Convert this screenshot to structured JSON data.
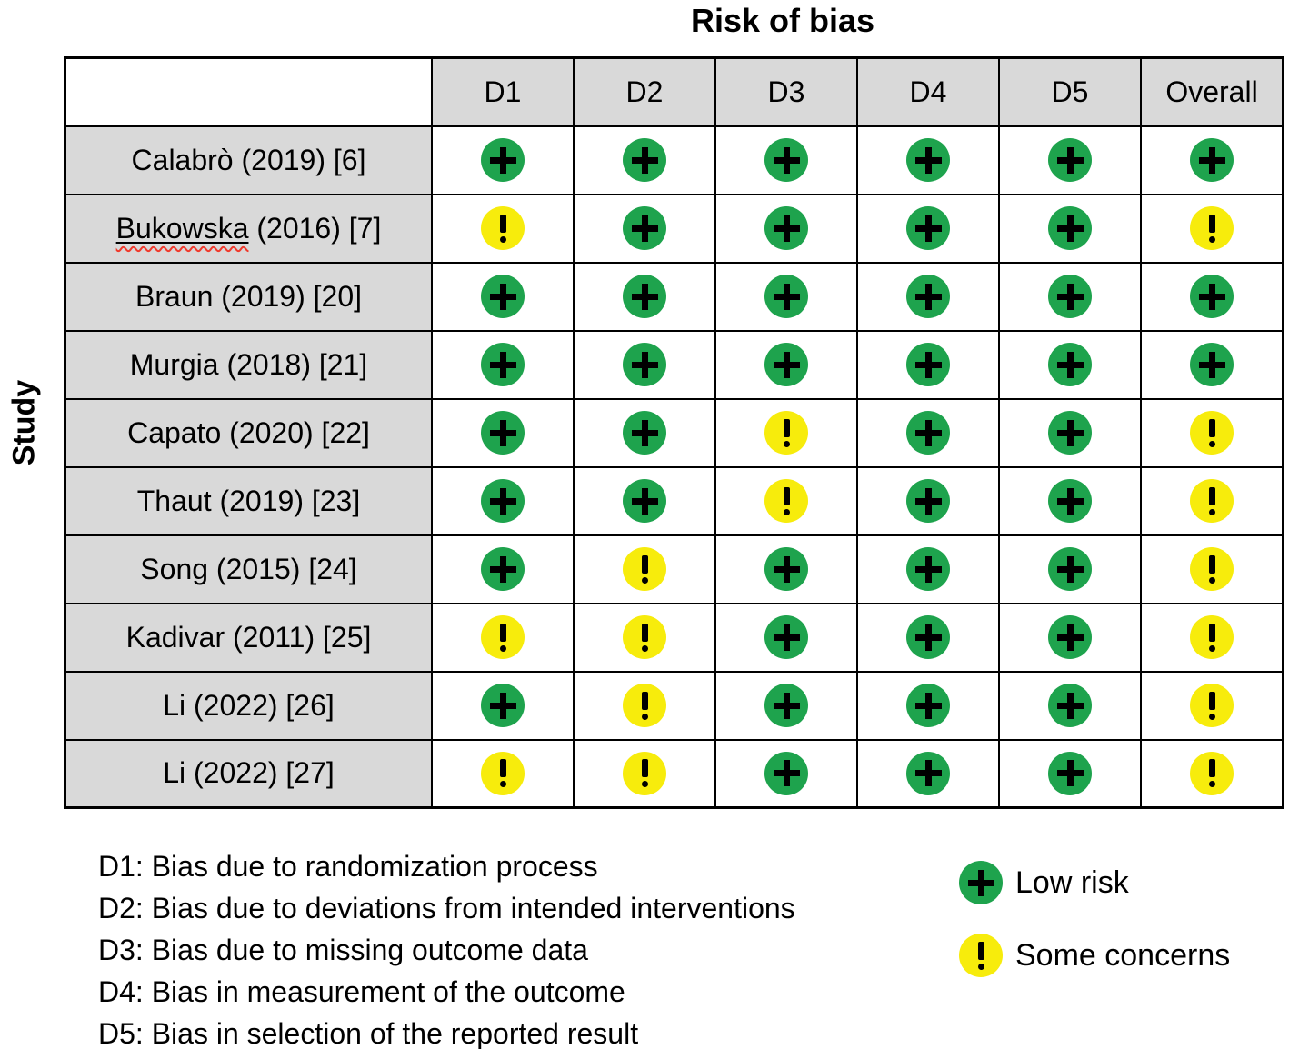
{
  "title": "Risk of bias",
  "y_axis_label": "Study",
  "chart_data": {
    "type": "table",
    "subtype": "risk-of-bias-traffic-light",
    "title": "Risk of bias",
    "row_axis_label": "Study",
    "columns": [
      "D1",
      "D2",
      "D3",
      "D4",
      "D5",
      "Overall"
    ],
    "judgment_symbols": {
      "low": "+",
      "some": "!"
    },
    "rows": [
      {
        "name": "Calabrò (2019) [6]",
        "judgments": [
          "low",
          "low",
          "low",
          "low",
          "low",
          "low"
        ]
      },
      {
        "name": "Bukowska (2016) [7]",
        "misspelled_word": "Bukowska",
        "judgments": [
          "some",
          "low",
          "low",
          "low",
          "low",
          "some"
        ]
      },
      {
        "name": "Braun (2019) [20]",
        "judgments": [
          "low",
          "low",
          "low",
          "low",
          "low",
          "low"
        ]
      },
      {
        "name": "Murgia (2018) [21]",
        "judgments": [
          "low",
          "low",
          "low",
          "low",
          "low",
          "low"
        ]
      },
      {
        "name": "Capato (2020) [22]",
        "judgments": [
          "low",
          "low",
          "some",
          "low",
          "low",
          "some"
        ]
      },
      {
        "name": "Thaut (2019) [23]",
        "judgments": [
          "low",
          "low",
          "some",
          "low",
          "low",
          "some"
        ]
      },
      {
        "name": "Song (2015) [24]",
        "judgments": [
          "low",
          "some",
          "low",
          "low",
          "low",
          "some"
        ]
      },
      {
        "name": "Kadivar (2011) [25]",
        "judgments": [
          "some",
          "some",
          "low",
          "low",
          "low",
          "some"
        ]
      },
      {
        "name": "Li (2022) [26]",
        "judgments": [
          "low",
          "some",
          "low",
          "low",
          "low",
          "some"
        ]
      },
      {
        "name": "Li (2022) [27]",
        "judgments": [
          "some",
          "some",
          "low",
          "low",
          "low",
          "some"
        ]
      }
    ]
  },
  "footnotes": [
    "D1: Bias due to randomization process",
    "D2: Bias due to deviations from intended interventions",
    "D3: Bias due to missing outcome data",
    "D4: Bias in measurement of the outcome",
    "D5: Bias in selection of the reported result"
  ],
  "legend": [
    {
      "judgment": "low",
      "symbol": "+",
      "label": "Low risk"
    },
    {
      "judgment": "some",
      "symbol": "!",
      "label": "Some concerns"
    }
  ],
  "colors": {
    "low_risk": "#1ea34d",
    "some_concerns": "#f7ec0c",
    "header_bg": "#d9d9d9",
    "spellcheck": "#f03a2c"
  }
}
